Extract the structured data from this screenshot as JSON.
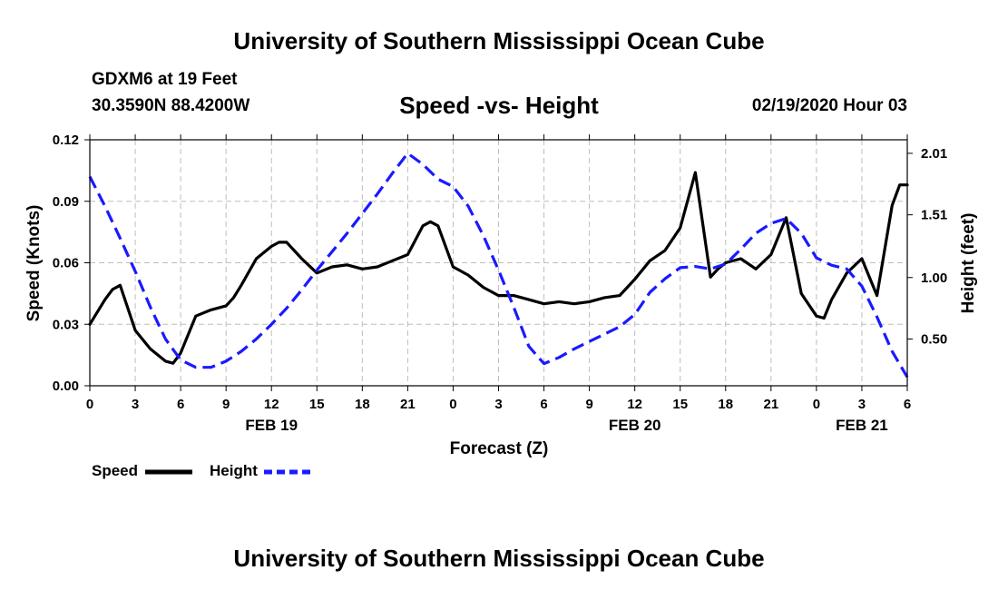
{
  "header": {
    "title": "University of Southern Mississippi Ocean Cube",
    "station": "GDXM6 at 19 Feet",
    "coords": "30.3590N 88.4200W",
    "subtitle": "Speed -vs- Height",
    "datetime": "02/19/2020 Hour 03"
  },
  "footer": {
    "title": "University of Southern Mississippi Ocean Cube"
  },
  "colors": {
    "speed": "#000000",
    "height": "#1a1aff",
    "grid": "#bdbdbd"
  },
  "chart_data": {
    "type": "line",
    "title": "Speed -vs- Height",
    "xlabel": "Forecast (Z)",
    "ylabel": "Speed (Knots)",
    "y2label": "Height (feet)",
    "x_range": [
      0,
      54
    ],
    "ylim": [
      0,
      0.12
    ],
    "y2lim": [
      0.12,
      2.12
    ],
    "grid": true,
    "legend_position": "bottom-left",
    "x_ticks": [
      {
        "x": 0,
        "label": "0"
      },
      {
        "x": 3,
        "label": "3"
      },
      {
        "x": 6,
        "label": "6"
      },
      {
        "x": 9,
        "label": "9"
      },
      {
        "x": 12,
        "label": "12"
      },
      {
        "x": 15,
        "label": "15"
      },
      {
        "x": 18,
        "label": "18"
      },
      {
        "x": 21,
        "label": "21"
      },
      {
        "x": 24,
        "label": "0"
      },
      {
        "x": 27,
        "label": "3"
      },
      {
        "x": 30,
        "label": "6"
      },
      {
        "x": 33,
        "label": "9"
      },
      {
        "x": 36,
        "label": "12"
      },
      {
        "x": 39,
        "label": "15"
      },
      {
        "x": 42,
        "label": "18"
      },
      {
        "x": 45,
        "label": "21"
      },
      {
        "x": 48,
        "label": "0"
      },
      {
        "x": 51,
        "label": "3"
      },
      {
        "x": 54,
        "label": "6"
      }
    ],
    "date_labels": [
      {
        "x": 12,
        "label": "FEB 19"
      },
      {
        "x": 36,
        "label": "FEB 20"
      },
      {
        "x": 51,
        "label": "FEB 21"
      }
    ],
    "y_ticks": [
      {
        "v": 0.0,
        "label": "0.00"
      },
      {
        "v": 0.03,
        "label": "0.03"
      },
      {
        "v": 0.06,
        "label": "0.06"
      },
      {
        "v": 0.09,
        "label": "0.09"
      },
      {
        "v": 0.12,
        "label": "0.12"
      }
    ],
    "y2_ticks": [
      {
        "v": 0.5,
        "label": "0.50"
      },
      {
        "v": 1.0,
        "label": "1.00"
      },
      {
        "v": 1.51,
        "label": "1.51"
      },
      {
        "v": 2.01,
        "label": "2.01"
      }
    ],
    "series": [
      {
        "name": "Speed",
        "axis": "left",
        "style": "solid",
        "x": [
          0,
          1,
          1.5,
          2,
          3,
          4,
          5,
          5.5,
          6,
          7,
          8,
          9,
          9.5,
          10,
          11,
          12,
          12.5,
          13,
          14,
          15,
          16,
          17,
          18,
          19,
          20,
          21,
          22,
          22.5,
          23,
          24,
          25,
          26,
          27,
          28,
          29,
          30,
          31,
          32,
          33,
          34,
          35,
          36,
          37,
          38,
          39,
          40,
          41,
          41.5,
          42,
          43,
          44,
          45,
          46,
          47,
          48,
          48.5,
          49,
          50,
          51,
          52,
          53,
          53.5,
          54
        ],
        "values": [
          0.03,
          0.042,
          0.047,
          0.049,
          0.027,
          0.018,
          0.012,
          0.011,
          0.016,
          0.034,
          0.037,
          0.039,
          0.043,
          0.049,
          0.062,
          0.068,
          0.07,
          0.07,
          0.062,
          0.055,
          0.058,
          0.059,
          0.057,
          0.058,
          0.061,
          0.064,
          0.078,
          0.08,
          0.078,
          0.058,
          0.054,
          0.048,
          0.044,
          0.044,
          0.042,
          0.04,
          0.041,
          0.04,
          0.041,
          0.043,
          0.044,
          0.052,
          0.061,
          0.066,
          0.077,
          0.104,
          0.053,
          0.057,
          0.06,
          0.062,
          0.057,
          0.064,
          0.082,
          0.045,
          0.034,
          0.033,
          0.042,
          0.055,
          0.062,
          0.044,
          0.088,
          0.098,
          0.098
        ]
      },
      {
        "name": "Height",
        "axis": "right",
        "style": "dashed",
        "x": [
          0,
          1,
          2,
          3,
          4,
          5,
          6,
          7,
          8,
          9,
          10,
          11,
          12,
          13,
          14,
          15,
          16,
          17,
          18,
          19,
          20,
          21,
          22,
          23,
          24,
          25,
          26,
          27,
          28,
          29,
          30,
          31,
          32,
          33,
          34,
          35,
          36,
          37,
          38,
          39,
          40,
          41,
          42,
          43,
          44,
          45,
          46,
          47,
          48,
          49,
          50,
          51,
          52,
          53,
          54
        ],
        "values": [
          1.82,
          1.58,
          1.32,
          1.05,
          0.76,
          0.5,
          0.33,
          0.27,
          0.27,
          0.32,
          0.4,
          0.5,
          0.62,
          0.75,
          0.9,
          1.06,
          1.21,
          1.36,
          1.52,
          1.68,
          1.85,
          2.01,
          1.92,
          1.8,
          1.74,
          1.58,
          1.34,
          1.06,
          0.76,
          0.44,
          0.3,
          0.35,
          0.42,
          0.48,
          0.54,
          0.6,
          0.7,
          0.88,
          0.99,
          1.08,
          1.09,
          1.07,
          1.11,
          1.23,
          1.36,
          1.44,
          1.48,
          1.36,
          1.16,
          1.1,
          1.07,
          0.93,
          0.68,
          0.4,
          0.19
        ]
      }
    ]
  }
}
